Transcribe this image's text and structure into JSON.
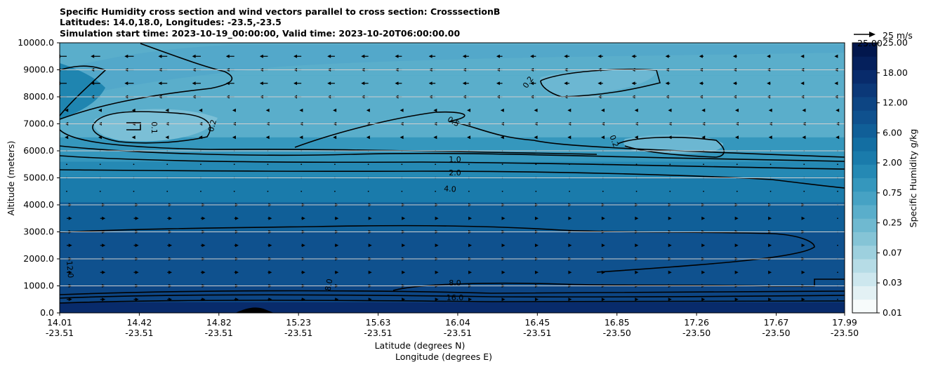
{
  "chart_data": {
    "type": "heatmap",
    "title_lines": [
      "Specific Humidity cross section and wind vectors parallel to cross section: CrosssectionB",
      "Latitudes: 14.0,18.0, Longitudes: -23.5,-23.5",
      "Simulation start time: 2023-10-19_00:00:00, Valid time: 2023-10-20T06:00:00.00"
    ],
    "xlabel": "Latitude (degrees N)",
    "xlabel2": "Longitude (degrees E)",
    "ylabel": "Altitude (meters)",
    "ylim": [
      0,
      10000
    ],
    "y_ticks": [
      "0.0",
      "1000.0",
      "2000.0",
      "3000.0",
      "4000.0",
      "5000.0",
      "6000.0",
      "7000.0",
      "8000.0",
      "9000.0",
      "10000.0"
    ],
    "x_ticks": [
      {
        "lat": "14.01",
        "lon": "-23.51"
      },
      {
        "lat": "14.42",
        "lon": "-23.51"
      },
      {
        "lat": "14.82",
        "lon": "-23.51"
      },
      {
        "lat": "15.23",
        "lon": "-23.51"
      },
      {
        "lat": "15.63",
        "lon": "-23.51"
      },
      {
        "lat": "16.04",
        "lon": "-23.51"
      },
      {
        "lat": "16.45",
        "lon": "-23.51"
      },
      {
        "lat": "16.85",
        "lon": "-23.50"
      },
      {
        "lat": "17.26",
        "lon": "-23.50"
      },
      {
        "lat": "17.67",
        "lon": "-23.50"
      },
      {
        "lat": "17.99",
        "lon": "-23.50"
      }
    ],
    "grid": "horizontal",
    "colorbar": {
      "label": "Specific Humidity g/kg",
      "top_label": "25.00",
      "labels": [
        "0.01",
        "0.03",
        "0.07",
        "0.25",
        "0.75",
        "2.00",
        "6.00",
        "12.00",
        "18.00",
        "25.00"
      ],
      "colors": [
        "#f7fbfb",
        "#e3f1f4",
        "#cde7ee",
        "#b6dce6",
        "#9dd0de",
        "#85c4d6",
        "#6fb9d0",
        "#5aaecb",
        "#46a2c4",
        "#3597bd",
        "#2589b4",
        "#1a7bab",
        "#136ea2",
        "#105f98",
        "#0f518e",
        "#0d4583",
        "#0b3878",
        "#082b6b",
        "#05205c",
        "#02174d"
      ]
    },
    "quiver_key": "25 m/s",
    "contour_labels": [
      {
        "value": "1.0"
      },
      {
        "value": "2.0"
      },
      {
        "value": "4.0"
      },
      {
        "value": "8.0"
      },
      {
        "value": "0.5"
      },
      {
        "value": "0.2"
      },
      {
        "value": "0.1"
      },
      {
        "value": "12.0"
      },
      {
        "value": "16.0"
      }
    ],
    "bands_altitude_m": [
      {
        "from": 0,
        "to": 400,
        "q": 18.0
      },
      {
        "from": 400,
        "to": 1000,
        "q": 14.0
      },
      {
        "from": 1000,
        "to": 3000,
        "q": 10.0
      },
      {
        "from": 3000,
        "to": 4100,
        "q": 6.5
      },
      {
        "from": 4100,
        "to": 5000,
        "q": 3.0
      },
      {
        "from": 5000,
        "to": 5600,
        "q": 1.5
      },
      {
        "from": 5600,
        "to": 6500,
        "q": 0.8
      },
      {
        "from": 6500,
        "to": 8800,
        "q": 0.3
      },
      {
        "from": 8800,
        "to": 10000,
        "q": 0.4
      }
    ]
  }
}
